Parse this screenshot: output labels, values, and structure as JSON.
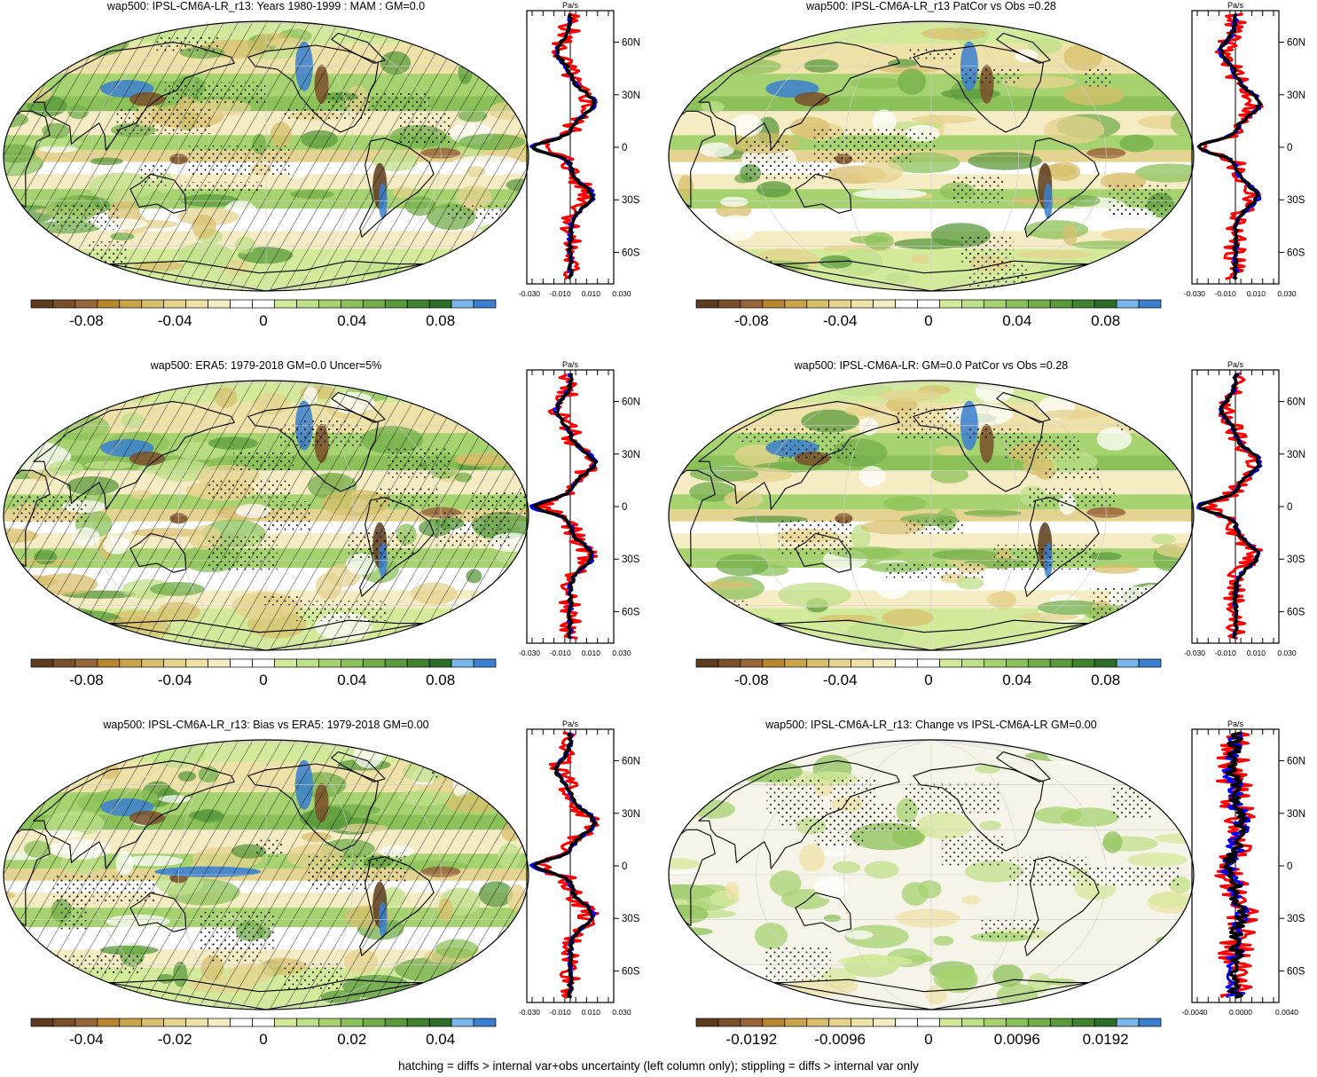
{
  "footnote": "hatching = diffs > internal var+obs uncertainty (left column only); stippling = diffs > internal var only",
  "colors": {
    "scale": [
      "#5c3b1f",
      "#7a4f2a",
      "#96653a",
      "#b8862e",
      "#c9a44a",
      "#d8bf6c",
      "#e6d38e",
      "#efe2a8",
      "#f5ecc4",
      "#ffffff",
      "#ffffff",
      "#d4ea9b",
      "#bfe08a",
      "#a6d26f",
      "#8cc15a",
      "#72ad49",
      "#5a9a3c",
      "#418231",
      "#2c6e27",
      "#79b7ea",
      "#3a7fd0"
    ],
    "model": "#0000ff",
    "obs": "#000000",
    "change": "#ff0000",
    "coast": "#000000"
  },
  "panels": [
    {
      "title": "wap500: IPSL-CM6A-LR_r13: Years 1980-1999 : MAM : GM=0.0",
      "hatched": true,
      "stippled": true,
      "colorbar_labels": [
        "-0.08",
        "-0.04",
        "0",
        "0.04",
        "0.08"
      ],
      "profile": {
        "unit": "Pa/s",
        "x_ticks": [
          "-0.030",
          "-0.010",
          "0.010",
          "0.030"
        ],
        "y_ticks": [
          "60N",
          "30N",
          "0",
          "30S",
          "60S"
        ]
      }
    },
    {
      "title": "wap500: IPSL-CM6A-LR_r13 PatCor vs Obs =0.28",
      "hatched": false,
      "stippled": true,
      "colorbar_labels": [
        "-0.08",
        "-0.04",
        "0",
        "0.04",
        "0.08"
      ],
      "profile": {
        "unit": "Pa/s",
        "x_ticks": [
          "-0.030",
          "-0.010",
          "0.010",
          "0.030"
        ],
        "y_ticks": [
          "60N",
          "30N",
          "0",
          "30S",
          "60S"
        ]
      }
    },
    {
      "title": "wap500: ERA5: 1979-2018 GM=0.0 Uncer=5%",
      "hatched": true,
      "stippled": true,
      "colorbar_labels": [
        "-0.08",
        "-0.04",
        "0",
        "0.04",
        "0.08"
      ],
      "profile": {
        "unit": "Pa/s",
        "x_ticks": [
          "-0.030",
          "-0.010",
          "0.010",
          "0.030"
        ],
        "y_ticks": [
          "60N",
          "30N",
          "0",
          "30S",
          "60S"
        ]
      }
    },
    {
      "title": "wap500: IPSL-CM6A-LR: GM=0.0 PatCor vs Obs =0.28",
      "hatched": false,
      "stippled": true,
      "colorbar_labels": [
        "-0.08",
        "-0.04",
        "0",
        "0.04",
        "0.08"
      ],
      "profile": {
        "unit": "Pa/s",
        "x_ticks": [
          "-0.030",
          "-0.010",
          "0.010",
          "0.030"
        ],
        "y_ticks": [
          "60N",
          "30N",
          "0",
          "30S",
          "60S"
        ]
      }
    },
    {
      "title": "wap500: IPSL-CM6A-LR_r13: Bias vs ERA5: 1979-2018 GM=0.00",
      "hatched": true,
      "stippled": true,
      "colorbar_labels": [
        "-0.04",
        "-0.02",
        "0",
        "0.02",
        "0.04"
      ],
      "profile": {
        "unit": "Pa/s",
        "x_ticks": [
          "-0.030",
          "-0.010",
          "0.010",
          "0.030"
        ],
        "y_ticks": [
          "60N",
          "30N",
          "0",
          "30S",
          "60S"
        ]
      }
    },
    {
      "title": "wap500: IPSL-CM6A-LR_r13: Change vs IPSL-CM6A-LR GM=0.00",
      "hatched": false,
      "stippled": true,
      "colorbar_labels": [
        "-0.0192",
        "-0.0096",
        "0",
        "0.0096",
        "0.0192"
      ],
      "profile": {
        "unit": "Pa/s",
        "x_ticks": [
          "-0.0040",
          "0.0000",
          "0.0040"
        ],
        "y_ticks": [
          "60N",
          "30N",
          "0",
          "30S",
          "60S"
        ]
      }
    }
  ],
  "chart_data": {
    "type": "heatmap",
    "title": "",
    "variable": "wap500",
    "profile_unit": "Pa/s",
    "grid": true,
    "legend": "colorbar-bottom"
  }
}
